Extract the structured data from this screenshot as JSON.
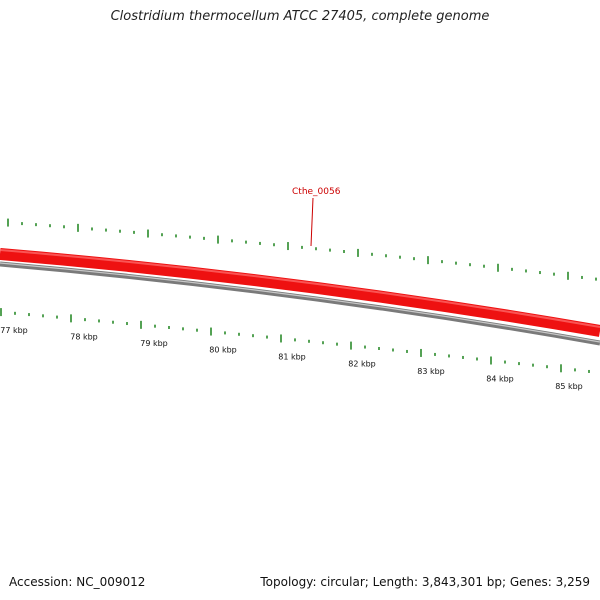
{
  "title": "Clostridium thermocellum ATCC 27405, complete genome",
  "footer": {
    "accession": "Accession: NC_009012",
    "summary": "Topology: circular; Length: 3,843,301 bp; Genes: 3,259"
  },
  "gene_label": "Cthe_0056",
  "colors": {
    "gene_track": "#ee0000",
    "backbone": "#808080",
    "tick": "#2a8a2a",
    "label": "#cc0000"
  },
  "scale": {
    "unit": "kbp",
    "labels": [
      "77 kbp",
      "78 kbp",
      "79 kbp",
      "80 kbp",
      "81 kbp",
      "82 kbp",
      "83 kbp",
      "84 kbp",
      "85 kbp"
    ]
  }
}
